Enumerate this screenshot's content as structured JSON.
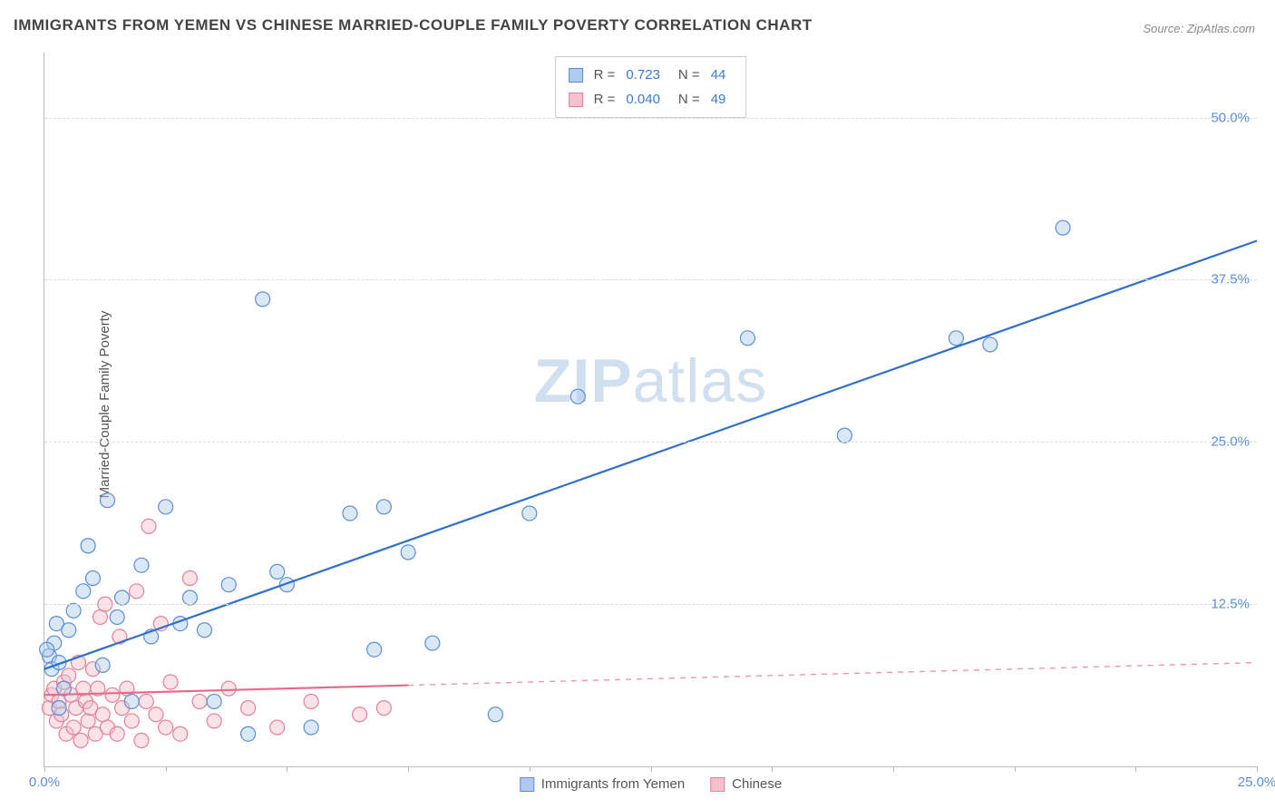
{
  "title": "IMMIGRANTS FROM YEMEN VS CHINESE MARRIED-COUPLE FAMILY POVERTY CORRELATION CHART",
  "source_label": "Source: ZipAtlas.com",
  "ylabel": "Married-Couple Family Poverty",
  "watermark_bold": "ZIP",
  "watermark_rest": "atlas",
  "chart": {
    "type": "scatter",
    "background_color": "#ffffff",
    "grid_color": "#dcdcdc",
    "axis_color": "#bbbbbb",
    "xlim": [
      0,
      25
    ],
    "ylim": [
      0,
      55
    ],
    "xticks": [
      0,
      2.5,
      5.0,
      7.5,
      10.0,
      12.5,
      15.0,
      17.5,
      20.0,
      22.5,
      25.0
    ],
    "xtick_labels": {
      "0": "0.0%",
      "25": "25.0%"
    },
    "yticks": [
      12.5,
      25.0,
      37.5,
      50.0
    ],
    "ytick_labels": [
      "12.5%",
      "25.0%",
      "37.5%",
      "50.0%"
    ],
    "tick_label_color": "#5a8fd6",
    "tick_label_fontsize": 15,
    "marker_radius": 8,
    "marker_stroke_width": 1.2,
    "marker_fill_opacity": 0.45,
    "line_width": 2.2,
    "series": [
      {
        "name": "Immigrants from Yemen",
        "color_fill": "#aecbeb",
        "color_stroke": "#5a8fd6",
        "line_color": "#2f6fd0",
        "R": "0.723",
        "N": "44",
        "trend": {
          "x1": 0,
          "y1": 7.5,
          "x2": 25,
          "y2": 40.5,
          "solid_until_x": 25
        },
        "points": [
          [
            0.1,
            8.5
          ],
          [
            0.15,
            7.5
          ],
          [
            0.2,
            9.5
          ],
          [
            0.25,
            11.0
          ],
          [
            0.3,
            8.0
          ],
          [
            0.4,
            6.0
          ],
          [
            0.5,
            10.5
          ],
          [
            0.6,
            12.0
          ],
          [
            0.8,
            13.5
          ],
          [
            0.9,
            17.0
          ],
          [
            1.0,
            14.5
          ],
          [
            1.2,
            7.8
          ],
          [
            1.3,
            20.5
          ],
          [
            1.5,
            11.5
          ],
          [
            1.6,
            13.0
          ],
          [
            1.8,
            5.0
          ],
          [
            2.0,
            15.5
          ],
          [
            2.2,
            10.0
          ],
          [
            2.5,
            20.0
          ],
          [
            2.8,
            11.0
          ],
          [
            3.0,
            13.0
          ],
          [
            3.3,
            10.5
          ],
          [
            3.5,
            5.0
          ],
          [
            3.8,
            14.0
          ],
          [
            4.2,
            2.5
          ],
          [
            4.5,
            36.0
          ],
          [
            4.8,
            15.0
          ],
          [
            5.0,
            14.0
          ],
          [
            5.5,
            3.0
          ],
          [
            6.3,
            19.5
          ],
          [
            6.8,
            9.0
          ],
          [
            7.0,
            20.0
          ],
          [
            7.5,
            16.5
          ],
          [
            8.0,
            9.5
          ],
          [
            9.3,
            4.0
          ],
          [
            10.0,
            19.5
          ],
          [
            11.0,
            28.5
          ],
          [
            14.5,
            33.0
          ],
          [
            16.5,
            25.5
          ],
          [
            18.8,
            33.0
          ],
          [
            19.5,
            32.5
          ],
          [
            21.0,
            41.5
          ],
          [
            0.3,
            4.5
          ],
          [
            0.05,
            9.0
          ]
        ]
      },
      {
        "name": "Chinese",
        "color_fill": "#f4c2cd",
        "color_stroke": "#e67f9b",
        "line_color": "#e86a8a",
        "R": "0.040",
        "N": "49",
        "trend": {
          "x1": 0,
          "y1": 5.5,
          "x2": 25,
          "y2": 8.0,
          "solid_until_x": 7.5
        },
        "points": [
          [
            0.1,
            4.5
          ],
          [
            0.15,
            5.5
          ],
          [
            0.2,
            6.0
          ],
          [
            0.25,
            3.5
          ],
          [
            0.3,
            5.0
          ],
          [
            0.35,
            4.0
          ],
          [
            0.4,
            6.5
          ],
          [
            0.45,
            2.5
          ],
          [
            0.5,
            7.0
          ],
          [
            0.55,
            5.5
          ],
          [
            0.6,
            3.0
          ],
          [
            0.65,
            4.5
          ],
          [
            0.7,
            8.0
          ],
          [
            0.75,
            2.0
          ],
          [
            0.8,
            6.0
          ],
          [
            0.85,
            5.0
          ],
          [
            0.9,
            3.5
          ],
          [
            0.95,
            4.5
          ],
          [
            1.0,
            7.5
          ],
          [
            1.05,
            2.5
          ],
          [
            1.1,
            6.0
          ],
          [
            1.15,
            11.5
          ],
          [
            1.2,
            4.0
          ],
          [
            1.25,
            12.5
          ],
          [
            1.3,
            3.0
          ],
          [
            1.4,
            5.5
          ],
          [
            1.5,
            2.5
          ],
          [
            1.55,
            10.0
          ],
          [
            1.6,
            4.5
          ],
          [
            1.7,
            6.0
          ],
          [
            1.8,
            3.5
          ],
          [
            1.9,
            13.5
          ],
          [
            2.0,
            2.0
          ],
          [
            2.1,
            5.0
          ],
          [
            2.15,
            18.5
          ],
          [
            2.3,
            4.0
          ],
          [
            2.4,
            11.0
          ],
          [
            2.5,
            3.0
          ],
          [
            2.6,
            6.5
          ],
          [
            2.8,
            2.5
          ],
          [
            3.0,
            14.5
          ],
          [
            3.2,
            5.0
          ],
          [
            3.5,
            3.5
          ],
          [
            3.8,
            6.0
          ],
          [
            4.2,
            4.5
          ],
          [
            4.8,
            3.0
          ],
          [
            5.5,
            5.0
          ],
          [
            6.5,
            4.0
          ],
          [
            7.0,
            4.5
          ]
        ]
      }
    ]
  },
  "legend_bottom": [
    {
      "swatch": "blue",
      "label": "Immigrants from Yemen"
    },
    {
      "swatch": "pink",
      "label": "Chinese"
    }
  ],
  "legend_top_labels": {
    "R": "R  =",
    "N": "N  ="
  }
}
